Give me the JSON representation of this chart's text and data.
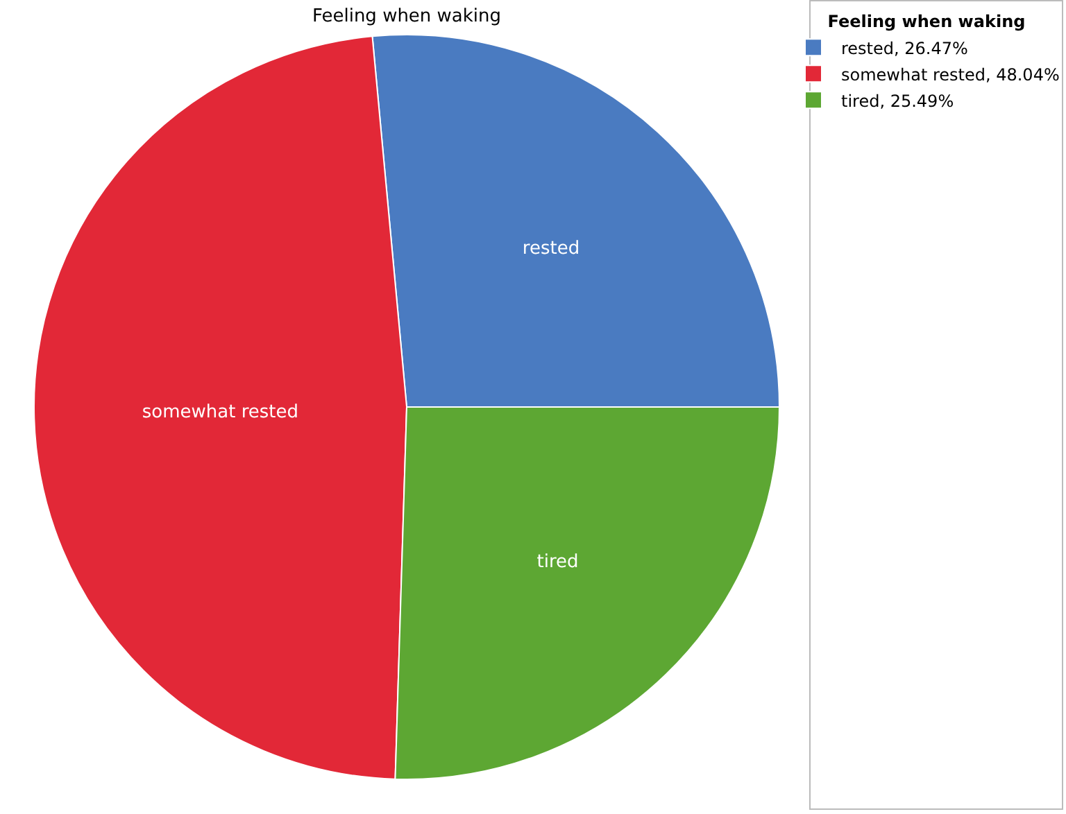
{
  "chart_data": {
    "type": "pie",
    "title": "Feeling when waking",
    "legend_title": "Feeling when waking",
    "categories": [
      "rested, 26.47%",
      "somewhat rested, 48.04%",
      "tired, 25.49%"
    ],
    "values": [
      26.47,
      48.04,
      25.49
    ],
    "value_labels": [
      "rested",
      "somewhat rested",
      "tired"
    ],
    "colors": [
      "#4a7bc1",
      "#e22837",
      "#5da733"
    ],
    "legend": "right"
  }
}
